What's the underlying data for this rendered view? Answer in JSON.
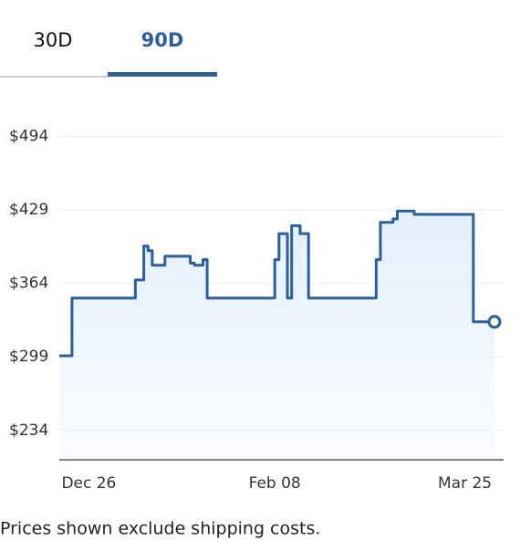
{
  "tabs": [
    "30D",
    "90D"
  ],
  "active_tab": 1,
  "chart_data": {
    "type": "line",
    "step": true,
    "color": "#2d5f9a",
    "fill": "#e2f0fd",
    "x": [
      -7,
      -4,
      11,
      13,
      14,
      15,
      18,
      24,
      25,
      27,
      28,
      44,
      45,
      47,
      48,
      50,
      52,
      68,
      69,
      72,
      73,
      77,
      91,
      96
    ],
    "values": [
      300,
      351,
      367,
      397,
      393,
      380,
      388,
      382,
      380,
      385,
      351,
      385,
      408,
      351,
      415,
      408,
      351,
      385,
      418,
      421,
      428,
      425,
      330,
      330
    ],
    "xlim": [
      -7,
      96
    ],
    "xticks": [
      {
        "value": 0,
        "label": "Dec 26"
      },
      {
        "value": 44,
        "label": "Feb 08"
      },
      {
        "value": 89,
        "label": "Mar 25"
      }
    ],
    "ylim": [
      208,
      517
    ],
    "yticks": [
      {
        "value": 234,
        "label": "$234"
      },
      {
        "value": 299,
        "label": "$299"
      },
      {
        "value": 364,
        "label": "$364"
      },
      {
        "value": 429,
        "label": "$429"
      },
      {
        "value": 494,
        "label": "$494"
      }
    ],
    "grid": true
  },
  "note": "Prices shown exclude shipping costs."
}
